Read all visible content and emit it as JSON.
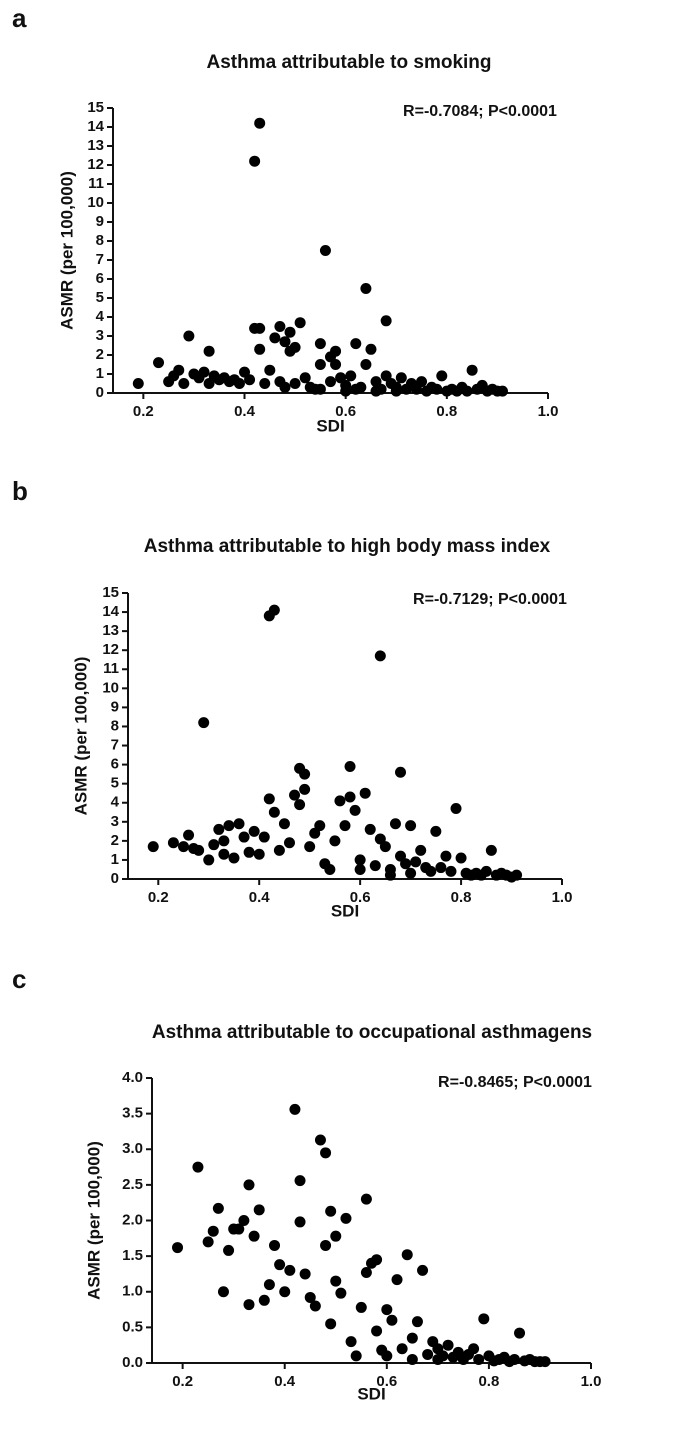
{
  "chart_data": [
    {
      "type": "scatter",
      "panel_label": "a",
      "title": "Asthma attributable to smoking",
      "annotation": "R=-0.7084; P<0.0001",
      "x_label": "SDI",
      "y_label": "ASMR (per 100,000)",
      "xlim": [
        0.14,
        1.0
      ],
      "xticks": [
        0.2,
        0.4,
        0.6,
        0.8,
        {
          "value": 1,
          "label": "1.0"
        }
      ],
      "ylim": [
        0,
        15
      ],
      "yticks": [
        0,
        1,
        2,
        3,
        4,
        5,
        6,
        7,
        8,
        9,
        10,
        11,
        12,
        13,
        14,
        15
      ],
      "series": [
        {
          "color": "#000000",
          "x": [
            0.19,
            0.23,
            0.25,
            0.26,
            0.27,
            0.28,
            0.29,
            0.3,
            0.31,
            0.32,
            0.33,
            0.33,
            0.34,
            0.35,
            0.36,
            0.37,
            0.38,
            0.39,
            0.4,
            0.41,
            0.42,
            0.43,
            0.42,
            0.43,
            0.43,
            0.44,
            0.45,
            0.46,
            0.47,
            0.48,
            0.49,
            0.49,
            0.5,
            0.51,
            0.47,
            0.48,
            0.5,
            0.52,
            0.53,
            0.54,
            0.55,
            0.55,
            0.56,
            0.57,
            0.58,
            0.58,
            0.59,
            0.6,
            0.61,
            0.62,
            0.63,
            0.64,
            0.64,
            0.65,
            0.66,
            0.67,
            0.68,
            0.68,
            0.69,
            0.7,
            0.71,
            0.72,
            0.73,
            0.74,
            0.75,
            0.76,
            0.77,
            0.78,
            0.79,
            0.8,
            0.81,
            0.82,
            0.83,
            0.84,
            0.85,
            0.86,
            0.87,
            0.88,
            0.89,
            0.9,
            0.91,
            0.6,
            0.62,
            0.66,
            0.7,
            0.55,
            0.57
          ],
          "values": [
            0.5,
            1.6,
            0.6,
            0.9,
            1.2,
            0.5,
            3.0,
            1.0,
            0.8,
            1.1,
            2.2,
            0.5,
            0.9,
            0.7,
            0.8,
            0.6,
            0.7,
            0.5,
            1.1,
            0.7,
            12.2,
            14.2,
            3.4,
            2.3,
            3.4,
            0.5,
            1.2,
            2.9,
            3.5,
            2.7,
            3.2,
            2.2,
            2.4,
            3.7,
            0.6,
            0.3,
            0.5,
            0.8,
            0.3,
            0.2,
            1.5,
            2.6,
            7.5,
            1.9,
            2.2,
            1.5,
            0.8,
            0.4,
            0.9,
            2.6,
            0.3,
            5.5,
            1.5,
            2.3,
            0.6,
            0.2,
            3.8,
            0.9,
            0.5,
            0.3,
            0.8,
            0.2,
            0.5,
            0.2,
            0.6,
            0.1,
            0.3,
            0.2,
            0.9,
            0.1,
            0.2,
            0.1,
            0.3,
            0.1,
            1.2,
            0.2,
            0.4,
            0.1,
            0.2,
            0.1,
            0.1,
            0.1,
            0.2,
            0.1,
            0.1,
            0.2,
            0.6
          ]
        }
      ]
    },
    {
      "type": "scatter",
      "panel_label": "b",
      "title": "Asthma attributable to high body mass index",
      "annotation": "R=-0.7129; P<0.0001",
      "x_label": "SDI",
      "y_label": "ASMR (per 100,000)",
      "xlim": [
        0.14,
        1.0
      ],
      "xticks": [
        0.2,
        0.4,
        0.6,
        0.8,
        {
          "value": 1,
          "label": "1.0"
        }
      ],
      "ylim": [
        0,
        15
      ],
      "yticks": [
        0,
        1,
        2,
        3,
        4,
        5,
        6,
        7,
        8,
        9,
        10,
        11,
        12,
        13,
        14,
        15
      ],
      "series": [
        {
          "color": "#000000",
          "x": [
            0.19,
            0.23,
            0.25,
            0.26,
            0.27,
            0.28,
            0.29,
            0.3,
            0.31,
            0.32,
            0.33,
            0.33,
            0.34,
            0.35,
            0.36,
            0.37,
            0.38,
            0.39,
            0.4,
            0.41,
            0.42,
            0.43,
            0.42,
            0.43,
            0.44,
            0.45,
            0.46,
            0.47,
            0.48,
            0.48,
            0.49,
            0.49,
            0.5,
            0.51,
            0.52,
            0.53,
            0.54,
            0.55,
            0.56,
            0.57,
            0.58,
            0.58,
            0.59,
            0.6,
            0.61,
            0.62,
            0.63,
            0.64,
            0.64,
            0.65,
            0.66,
            0.67,
            0.68,
            0.68,
            0.69,
            0.7,
            0.71,
            0.72,
            0.73,
            0.74,
            0.75,
            0.76,
            0.77,
            0.78,
            0.79,
            0.8,
            0.81,
            0.82,
            0.83,
            0.84,
            0.85,
            0.86,
            0.87,
            0.88,
            0.89,
            0.9,
            0.91,
            0.6,
            0.66,
            0.7
          ],
          "values": [
            1.7,
            1.9,
            1.7,
            2.3,
            1.6,
            1.5,
            8.2,
            1.0,
            1.8,
            2.6,
            1.3,
            2.0,
            2.8,
            1.1,
            2.9,
            2.2,
            1.4,
            2.5,
            1.3,
            2.2,
            13.8,
            14.1,
            4.2,
            3.5,
            1.5,
            2.9,
            1.9,
            4.4,
            5.8,
            3.9,
            5.5,
            4.7,
            1.7,
            2.4,
            2.8,
            0.8,
            0.5,
            2.0,
            4.1,
            2.8,
            5.9,
            4.3,
            3.6,
            1.0,
            4.5,
            2.6,
            0.7,
            11.7,
            2.1,
            1.7,
            0.5,
            2.9,
            5.6,
            1.2,
            0.8,
            2.8,
            0.9,
            1.5,
            0.6,
            0.4,
            2.5,
            0.6,
            1.2,
            0.4,
            3.7,
            1.1,
            0.3,
            0.2,
            0.3,
            0.2,
            0.4,
            1.5,
            0.2,
            0.3,
            0.2,
            0.1,
            0.2,
            0.5,
            0.2,
            0.3
          ]
        }
      ]
    },
    {
      "type": "scatter",
      "panel_label": "c",
      "title": "Asthma attributable to occupational asthmagens",
      "annotation": "R=-0.8465; P<0.0001",
      "x_label": "SDI",
      "y_label": "ASMR (per 100,000)",
      "xlim": [
        0.14,
        1.0
      ],
      "xticks": [
        0.2,
        0.4,
        0.6,
        0.8,
        {
          "value": 1,
          "label": "1.0"
        }
      ],
      "ylim": [
        0,
        4
      ],
      "yticks": [
        {
          "value": 0,
          "label": "0.0"
        },
        0.5,
        {
          "value": 1,
          "label": "1.0"
        },
        1.5,
        {
          "value": 2,
          "label": "2.0"
        },
        2.5,
        {
          "value": 3,
          "label": "3.0"
        },
        3.5,
        {
          "value": 4,
          "label": "4.0"
        }
      ],
      "series": [
        {
          "color": "#000000",
          "x": [
            0.19,
            0.23,
            0.25,
            0.26,
            0.27,
            0.28,
            0.29,
            0.3,
            0.31,
            0.32,
            0.33,
            0.33,
            0.34,
            0.35,
            0.36,
            0.37,
            0.38,
            0.39,
            0.4,
            0.41,
            0.42,
            0.43,
            0.43,
            0.44,
            0.45,
            0.46,
            0.47,
            0.48,
            0.48,
            0.49,
            0.49,
            0.5,
            0.5,
            0.51,
            0.52,
            0.53,
            0.54,
            0.55,
            0.56,
            0.56,
            0.57,
            0.58,
            0.58,
            0.59,
            0.6,
            0.61,
            0.62,
            0.63,
            0.64,
            0.65,
            0.66,
            0.67,
            0.68,
            0.69,
            0.7,
            0.71,
            0.72,
            0.73,
            0.74,
            0.75,
            0.76,
            0.77,
            0.78,
            0.79,
            0.8,
            0.81,
            0.82,
            0.83,
            0.84,
            0.85,
            0.86,
            0.87,
            0.88,
            0.89,
            0.9,
            0.91,
            0.6,
            0.65,
            0.7
          ],
          "values": [
            1.62,
            2.75,
            1.7,
            1.85,
            2.17,
            1.0,
            1.58,
            1.88,
            1.88,
            2.0,
            2.5,
            0.82,
            1.78,
            2.15,
            0.88,
            1.1,
            1.65,
            1.38,
            1.0,
            1.3,
            3.56,
            2.56,
            1.98,
            1.25,
            0.92,
            0.8,
            3.13,
            2.95,
            1.65,
            2.13,
            0.55,
            1.78,
            1.15,
            0.98,
            2.03,
            0.3,
            0.1,
            0.78,
            2.3,
            1.27,
            1.4,
            1.45,
            0.45,
            0.18,
            0.75,
            0.6,
            1.17,
            0.2,
            1.52,
            0.35,
            0.58,
            1.3,
            0.12,
            0.3,
            0.2,
            0.1,
            0.25,
            0.08,
            0.15,
            0.05,
            0.12,
            0.2,
            0.05,
            0.62,
            0.1,
            0.03,
            0.05,
            0.08,
            0.02,
            0.05,
            0.42,
            0.03,
            0.05,
            0.02,
            0.02,
            0.02,
            0.1,
            0.05,
            0.05
          ]
        }
      ]
    }
  ]
}
